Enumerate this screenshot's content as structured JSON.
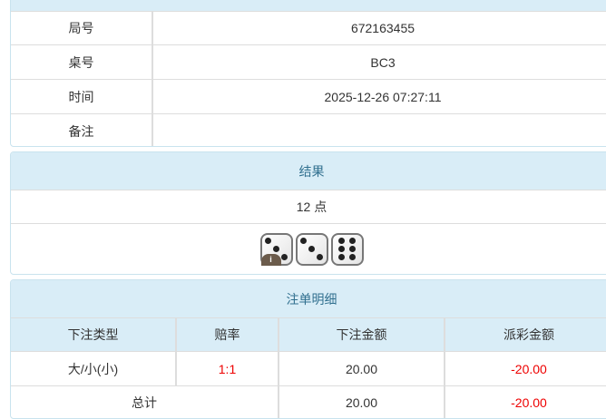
{
  "info": {
    "rows": [
      {
        "label": "局号",
        "value": "672163455"
      },
      {
        "label": "桌号",
        "value": "BC3"
      },
      {
        "label": "时间",
        "value": "2025-12-26 07:27:11"
      },
      {
        "label": "备注",
        "value": ""
      }
    ]
  },
  "result": {
    "title": "结果",
    "points": "12 点",
    "dice": [
      3,
      3,
      6
    ],
    "info_icon": "i"
  },
  "bets": {
    "title": "注单明细",
    "columns": [
      "下注类型",
      "赔率",
      "下注金额",
      "派彩金额"
    ],
    "rows": [
      {
        "type": "大/小(小)",
        "odds": "1:1",
        "amount": "20.00",
        "payout": "-20.00"
      }
    ],
    "total": {
      "label": "总计",
      "amount": "20.00",
      "payout": "-20.00"
    }
  },
  "colors": {
    "header_bg": "#d9edf7",
    "header_text": "#31708f",
    "negative": "#e00000"
  }
}
